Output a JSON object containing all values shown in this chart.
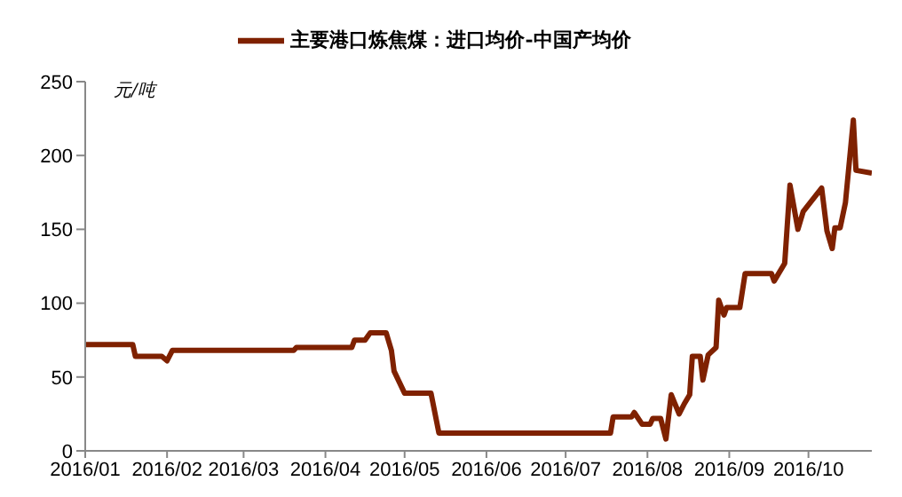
{
  "chart_data": {
    "type": "line",
    "ylabel": "元/吨",
    "legend": "top",
    "grid": false,
    "marker": "none",
    "line_style": "solid",
    "x": [
      "2016-01-01",
      "2016-01-19",
      "2016-01-20",
      "2016-01-30",
      "2016-02-01",
      "2016-02-03",
      "2016-03-20",
      "2016-03-21",
      "2016-04-11",
      "2016-04-12",
      "2016-04-16",
      "2016-04-18",
      "2016-04-24",
      "2016-04-26",
      "2016-04-27",
      "2016-05-01",
      "2016-05-11",
      "2016-05-14",
      "2016-07-18",
      "2016-07-19",
      "2016-07-26",
      "2016-07-27",
      "2016-07-30",
      "2016-08-02",
      "2016-08-03",
      "2016-08-06",
      "2016-08-08",
      "2016-08-10",
      "2016-08-13",
      "2016-08-15",
      "2016-08-17",
      "2016-08-18",
      "2016-08-21",
      "2016-08-22",
      "2016-08-24",
      "2016-08-27",
      "2016-08-28",
      "2016-08-30",
      "2016-08-31",
      "2016-09-05",
      "2016-09-07",
      "2016-09-17",
      "2016-09-18",
      "2016-09-22",
      "2016-09-24",
      "2016-09-27",
      "2016-09-29",
      "2016-10-06",
      "2016-10-08",
      "2016-10-10",
      "2016-10-11",
      "2016-10-13",
      "2016-10-15",
      "2016-10-18",
      "2016-10-19",
      "2016-10-25"
    ],
    "series": [
      {
        "name": "主要港口炼焦煤：进口均价-中国产均价",
        "color": "#7f2100",
        "values": [
          72,
          72,
          64,
          64,
          61,
          68,
          68,
          70,
          70,
          75,
          75,
          80,
          80,
          68,
          54,
          39,
          39,
          12,
          12,
          23,
          23,
          26,
          18,
          18,
          22,
          22,
          8,
          38,
          25,
          32,
          38,
          64,
          64,
          48,
          65,
          70,
          102,
          92,
          97,
          97,
          120,
          120,
          115,
          127,
          180,
          150,
          162,
          178,
          149,
          137,
          151,
          151,
          168,
          224,
          190,
          188
        ]
      }
    ],
    "xlim": [
      "2016-01-01",
      "2016-10-25"
    ],
    "xticks": [
      {
        "value": "2016-01-01",
        "label": "2016/01"
      },
      {
        "value": "2016-02-01",
        "label": "2016/02"
      },
      {
        "value": "2016-03-01",
        "label": "2016/03"
      },
      {
        "value": "2016-04-01",
        "label": "2016/04"
      },
      {
        "value": "2016-05-01",
        "label": "2016/05"
      },
      {
        "value": "2016-06-01",
        "label": "2016/06"
      },
      {
        "value": "2016-07-01",
        "label": "2016/07"
      },
      {
        "value": "2016-08-01",
        "label": "2016/08"
      },
      {
        "value": "2016-09-01",
        "label": "2016/09"
      },
      {
        "value": "2016-10-01",
        "label": "2016/10"
      }
    ],
    "ylim": [
      0,
      250
    ],
    "yticks": [
      0,
      50,
      100,
      150,
      200,
      250
    ]
  }
}
